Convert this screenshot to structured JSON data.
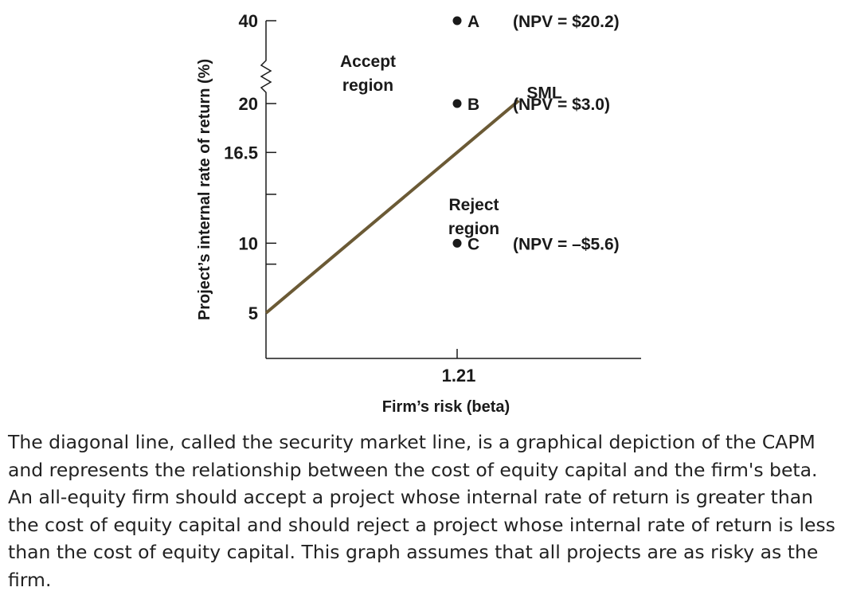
{
  "chart_data": {
    "type": "scatter",
    "title": "",
    "xlabel": "Firm’s risk (beta)",
    "ylabel": "Project’s internal rate of return (%)",
    "x_ticks": [
      "1.21"
    ],
    "y_ticks": [
      "40",
      "20",
      "16.5",
      "10",
      "5"
    ],
    "y_axis_break": true,
    "line": {
      "name": "SML",
      "x": [
        0,
        1.21,
        1.6
      ],
      "y": [
        5,
        16.5,
        20.3
      ],
      "color": "#6b5a35"
    },
    "points": [
      {
        "label": "A",
        "x": 1.21,
        "y": 40,
        "annotation": "(NPV = $20.2)"
      },
      {
        "label": "B",
        "x": 1.21,
        "y": 20,
        "annotation": "(NPV = $3.0)"
      },
      {
        "label": "C",
        "x": 1.21,
        "y": 10,
        "annotation": "(NPV = –$5.6)"
      }
    ],
    "regions": {
      "accept": [
        "Accept",
        "region"
      ],
      "reject": [
        "Reject",
        "region"
      ]
    },
    "grid": false
  },
  "caption": "The diagonal line, called the security market line, is a graphical depiction of the CAPM and represents the relationship between the cost of equity capital and the firm's beta. An all-equity firm should accept a project whose internal rate of return is greater than the cost of equity capital and should reject a project whose internal rate of return is less than the cost of equity capital. This graph assumes that all projects are as risky as the firm."
}
